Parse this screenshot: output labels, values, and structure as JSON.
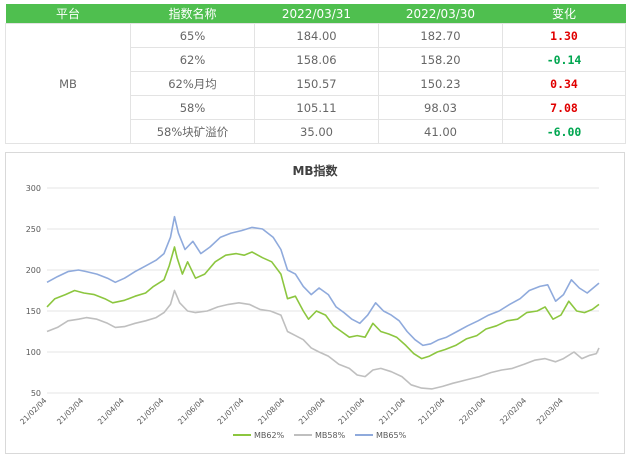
{
  "table": {
    "headers": [
      "平台",
      "指数名称",
      "2022/03/31",
      "2022/03/30",
      "变化"
    ],
    "platform": "MB",
    "rows": [
      {
        "name": "65%",
        "v1": "184.00",
        "v2": "182.70",
        "change": "1.30",
        "dir": "up"
      },
      {
        "name": "62%",
        "v1": "158.06",
        "v2": "158.20",
        "change": "-0.14",
        "dir": "down"
      },
      {
        "name": "62%月均",
        "v1": "150.57",
        "v2": "150.23",
        "change": "0.34",
        "dir": "up"
      },
      {
        "name": "58%",
        "v1": "105.11",
        "v2": "98.03",
        "change": "7.08",
        "dir": "up"
      },
      {
        "name": "58%块矿溢价",
        "v1": "35.00",
        "v2": "41.00",
        "change": "-6.00",
        "dir": "down"
      }
    ]
  },
  "colors": {
    "up": "#e00000",
    "down": "#00a650",
    "header_bg": "#4fbf4f"
  },
  "chart_data": {
    "type": "line",
    "title": "MB指数",
    "ylim": [
      50,
      300
    ],
    "yticks": [
      50,
      100,
      150,
      200,
      250,
      300
    ],
    "grid": true,
    "legend": "bottom",
    "xrange": [
      "2021-02-04",
      "2022-03-31"
    ],
    "xticks": [
      "21/02/04",
      "21/03/04",
      "21/04/04",
      "21/05/04",
      "21/06/04",
      "21/07/04",
      "21/08/04",
      "21/09/04",
      "21/10/04",
      "21/11/04",
      "21/12/04",
      "22/01/04",
      "22/02/04",
      "22/03/04"
    ],
    "series": [
      {
        "name": "MB62%",
        "color": "#8cc63f",
        "points": [
          [
            "2021-02-04",
            155
          ],
          [
            "2021-02-10",
            165
          ],
          [
            "2021-02-18",
            170
          ],
          [
            "2021-02-25",
            175
          ],
          [
            "2021-03-04",
            172
          ],
          [
            "2021-03-12",
            170
          ],
          [
            "2021-03-20",
            165
          ],
          [
            "2021-03-26",
            160
          ],
          [
            "2021-04-04",
            163
          ],
          [
            "2021-04-12",
            168
          ],
          [
            "2021-04-20",
            172
          ],
          [
            "2021-04-26",
            180
          ],
          [
            "2021-05-04",
            188
          ],
          [
            "2021-05-08",
            205
          ],
          [
            "2021-05-12",
            228
          ],
          [
            "2021-05-14",
            215
          ],
          [
            "2021-05-18",
            195
          ],
          [
            "2021-05-22",
            210
          ],
          [
            "2021-05-28",
            190
          ],
          [
            "2021-06-04",
            195
          ],
          [
            "2021-06-12",
            210
          ],
          [
            "2021-06-20",
            218
          ],
          [
            "2021-06-28",
            220
          ],
          [
            "2021-07-04",
            218
          ],
          [
            "2021-07-10",
            222
          ],
          [
            "2021-07-18",
            215
          ],
          [
            "2021-07-25",
            210
          ],
          [
            "2021-08-01",
            195
          ],
          [
            "2021-08-06",
            165
          ],
          [
            "2021-08-12",
            168
          ],
          [
            "2021-08-18",
            150
          ],
          [
            "2021-08-22",
            140
          ],
          [
            "2021-08-28",
            150
          ],
          [
            "2021-09-04",
            145
          ],
          [
            "2021-09-10",
            132
          ],
          [
            "2021-09-16",
            125
          ],
          [
            "2021-09-22",
            118
          ],
          [
            "2021-09-28",
            120
          ],
          [
            "2021-10-04",
            118
          ],
          [
            "2021-10-10",
            135
          ],
          [
            "2021-10-16",
            125
          ],
          [
            "2021-10-22",
            122
          ],
          [
            "2021-10-28",
            118
          ],
          [
            "2021-11-04",
            108
          ],
          [
            "2021-11-10",
            98
          ],
          [
            "2021-11-16",
            92
          ],
          [
            "2021-11-22",
            95
          ],
          [
            "2021-11-28",
            100
          ],
          [
            "2021-12-04",
            103
          ],
          [
            "2021-12-12",
            108
          ],
          [
            "2021-12-20",
            116
          ],
          [
            "2021-12-28",
            120
          ],
          [
            "2022-01-04",
            128
          ],
          [
            "2022-01-12",
            132
          ],
          [
            "2022-01-20",
            138
          ],
          [
            "2022-01-28",
            140
          ],
          [
            "2022-02-04",
            148
          ],
          [
            "2022-02-12",
            150
          ],
          [
            "2022-02-18",
            155
          ],
          [
            "2022-02-24",
            140
          ],
          [
            "2022-03-02",
            145
          ],
          [
            "2022-03-08",
            162
          ],
          [
            "2022-03-14",
            150
          ],
          [
            "2022-03-20",
            148
          ],
          [
            "2022-03-26",
            152
          ],
          [
            "2022-03-31",
            158
          ]
        ]
      },
      {
        "name": "MB58%",
        "color": "#bfbfbf",
        "points": [
          [
            "2021-02-04",
            125
          ],
          [
            "2021-02-12",
            130
          ],
          [
            "2021-02-20",
            138
          ],
          [
            "2021-02-28",
            140
          ],
          [
            "2021-03-06",
            142
          ],
          [
            "2021-03-14",
            140
          ],
          [
            "2021-03-22",
            135
          ],
          [
            "2021-03-28",
            130
          ],
          [
            "2021-04-04",
            131
          ],
          [
            "2021-04-12",
            135
          ],
          [
            "2021-04-20",
            138
          ],
          [
            "2021-04-28",
            142
          ],
          [
            "2021-05-04",
            148
          ],
          [
            "2021-05-09",
            158
          ],
          [
            "2021-05-12",
            175
          ],
          [
            "2021-05-16",
            160
          ],
          [
            "2021-05-22",
            150
          ],
          [
            "2021-05-28",
            148
          ],
          [
            "2021-06-06",
            150
          ],
          [
            "2021-06-14",
            155
          ],
          [
            "2021-06-22",
            158
          ],
          [
            "2021-06-30",
            160
          ],
          [
            "2021-07-08",
            158
          ],
          [
            "2021-07-16",
            152
          ],
          [
            "2021-07-24",
            150
          ],
          [
            "2021-08-01",
            145
          ],
          [
            "2021-08-06",
            125
          ],
          [
            "2021-08-12",
            120
          ],
          [
            "2021-08-18",
            115
          ],
          [
            "2021-08-24",
            105
          ],
          [
            "2021-08-30",
            100
          ],
          [
            "2021-09-06",
            95
          ],
          [
            "2021-09-14",
            85
          ],
          [
            "2021-09-22",
            80
          ],
          [
            "2021-09-28",
            72
          ],
          [
            "2021-10-04",
            70
          ],
          [
            "2021-10-10",
            78
          ],
          [
            "2021-10-16",
            80
          ],
          [
            "2021-10-24",
            76
          ],
          [
            "2021-11-01",
            70
          ],
          [
            "2021-11-08",
            60
          ],
          [
            "2021-11-16",
            56
          ],
          [
            "2021-11-24",
            55
          ],
          [
            "2021-12-02",
            58
          ],
          [
            "2021-12-10",
            62
          ],
          [
            "2021-12-20",
            66
          ],
          [
            "2021-12-30",
            70
          ],
          [
            "2022-01-08",
            75
          ],
          [
            "2022-01-16",
            78
          ],
          [
            "2022-01-24",
            80
          ],
          [
            "2022-02-02",
            85
          ],
          [
            "2022-02-10",
            90
          ],
          [
            "2022-02-18",
            92
          ],
          [
            "2022-02-26",
            88
          ],
          [
            "2022-03-04",
            92
          ],
          [
            "2022-03-12",
            100
          ],
          [
            "2022-03-18",
            92
          ],
          [
            "2022-03-24",
            96
          ],
          [
            "2022-03-29",
            98
          ],
          [
            "2022-03-31",
            105
          ]
        ]
      },
      {
        "name": "MB65%",
        "color": "#8faadc",
        "points": [
          [
            "2021-02-04",
            185
          ],
          [
            "2021-02-12",
            192
          ],
          [
            "2021-02-20",
            198
          ],
          [
            "2021-02-28",
            200
          ],
          [
            "2021-03-06",
            198
          ],
          [
            "2021-03-14",
            195
          ],
          [
            "2021-03-22",
            190
          ],
          [
            "2021-03-28",
            185
          ],
          [
            "2021-04-04",
            190
          ],
          [
            "2021-04-12",
            198
          ],
          [
            "2021-04-20",
            205
          ],
          [
            "2021-04-28",
            212
          ],
          [
            "2021-05-04",
            220
          ],
          [
            "2021-05-09",
            240
          ],
          [
            "2021-05-12",
            265
          ],
          [
            "2021-05-15",
            245
          ],
          [
            "2021-05-20",
            225
          ],
          [
            "2021-05-26",
            235
          ],
          [
            "2021-06-01",
            220
          ],
          [
            "2021-06-08",
            228
          ],
          [
            "2021-06-16",
            240
          ],
          [
            "2021-06-24",
            245
          ],
          [
            "2021-07-02",
            248
          ],
          [
            "2021-07-10",
            252
          ],
          [
            "2021-07-18",
            250
          ],
          [
            "2021-07-26",
            240
          ],
          [
            "2021-08-01",
            225
          ],
          [
            "2021-08-06",
            200
          ],
          [
            "2021-08-12",
            195
          ],
          [
            "2021-08-18",
            180
          ],
          [
            "2021-08-24",
            170
          ],
          [
            "2021-08-30",
            178
          ],
          [
            "2021-09-06",
            170
          ],
          [
            "2021-09-12",
            155
          ],
          [
            "2021-09-18",
            148
          ],
          [
            "2021-09-24",
            140
          ],
          [
            "2021-09-30",
            135
          ],
          [
            "2021-10-06",
            145
          ],
          [
            "2021-10-12",
            160
          ],
          [
            "2021-10-18",
            150
          ],
          [
            "2021-10-24",
            145
          ],
          [
            "2021-10-30",
            138
          ],
          [
            "2021-11-05",
            125
          ],
          [
            "2021-11-11",
            115
          ],
          [
            "2021-11-17",
            108
          ],
          [
            "2021-11-23",
            110
          ],
          [
            "2021-11-29",
            115
          ],
          [
            "2021-12-05",
            118
          ],
          [
            "2021-12-13",
            125
          ],
          [
            "2021-12-21",
            132
          ],
          [
            "2021-12-29",
            138
          ],
          [
            "2022-01-06",
            145
          ],
          [
            "2022-01-14",
            150
          ],
          [
            "2022-01-22",
            158
          ],
          [
            "2022-01-30",
            165
          ],
          [
            "2022-02-06",
            175
          ],
          [
            "2022-02-14",
            180
          ],
          [
            "2022-02-20",
            182
          ],
          [
            "2022-02-26",
            162
          ],
          [
            "2022-03-04",
            170
          ],
          [
            "2022-03-10",
            188
          ],
          [
            "2022-03-16",
            178
          ],
          [
            "2022-03-22",
            172
          ],
          [
            "2022-03-28",
            180
          ],
          [
            "2022-03-31",
            184
          ]
        ]
      }
    ]
  }
}
